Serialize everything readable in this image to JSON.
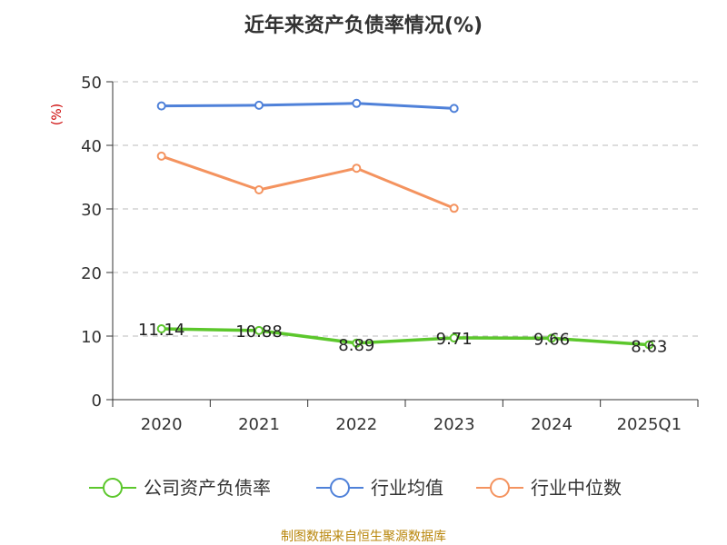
{
  "chart_data": {
    "type": "line",
    "title": "近年来资产负债率情况(%)",
    "ylabel": "(%)",
    "xlabel": "",
    "categories": [
      "2020",
      "2021",
      "2022",
      "2023",
      "2024",
      "2025Q1"
    ],
    "ylim": [
      0,
      50
    ],
    "yticks": [
      0,
      10,
      20,
      30,
      40,
      50
    ],
    "grid": true,
    "legend_position": "bottom",
    "series": [
      {
        "name": "公司资产负债率",
        "color": "#5cc72c",
        "values": [
          11.14,
          10.88,
          8.89,
          9.71,
          9.66,
          8.63
        ],
        "labels": [
          "11.14",
          "10.88",
          "8.89",
          "9.71",
          "9.66",
          "8.63"
        ]
      },
      {
        "name": "行业均值",
        "color": "#4f81d9",
        "values": [
          46.2,
          46.3,
          46.6,
          45.8,
          null,
          null
        ]
      },
      {
        "name": "行业中位数",
        "color": "#f4935f",
        "values": [
          38.3,
          33.0,
          36.4,
          30.1,
          null,
          null
        ]
      }
    ]
  },
  "source": "制图数据来自恒生聚源数据库"
}
